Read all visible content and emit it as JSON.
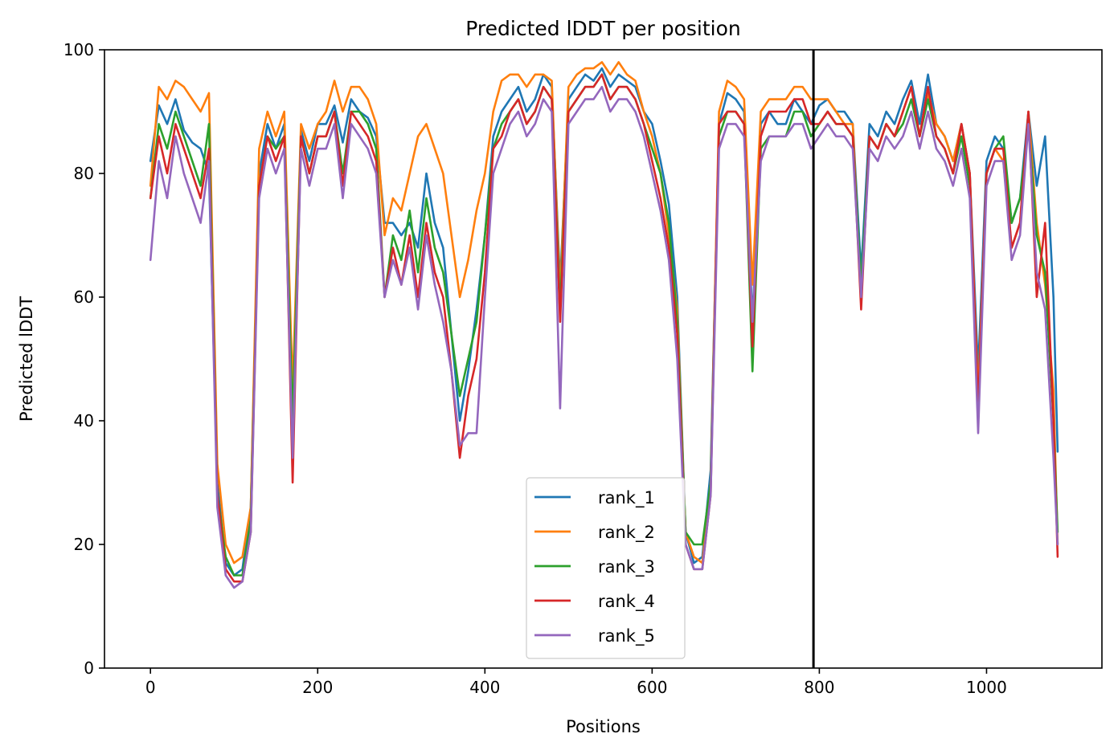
{
  "chart_data": {
    "type": "line",
    "title": "Predicted lDDT per position",
    "xlabel": "Positions",
    "ylabel": "Predicted lDDT",
    "xlim": [
      -55,
      1138
    ],
    "ylim": [
      0,
      100
    ],
    "xticks": [
      0,
      200,
      400,
      600,
      800,
      1000
    ],
    "yticks": [
      0,
      20,
      40,
      60,
      80,
      100
    ],
    "grid": false,
    "legend_position": "lower center",
    "vline": {
      "x": 793,
      "color": "#000000"
    },
    "x": [
      0,
      10,
      20,
      30,
      40,
      50,
      60,
      70,
      80,
      90,
      100,
      110,
      120,
      130,
      140,
      150,
      160,
      170,
      180,
      190,
      200,
      210,
      220,
      230,
      240,
      250,
      260,
      270,
      280,
      290,
      300,
      310,
      320,
      330,
      340,
      350,
      360,
      370,
      380,
      390,
      400,
      410,
      420,
      430,
      440,
      450,
      460,
      470,
      480,
      490,
      500,
      510,
      520,
      530,
      540,
      550,
      560,
      570,
      580,
      590,
      600,
      610,
      620,
      630,
      640,
      650,
      660,
      670,
      680,
      690,
      700,
      710,
      720,
      730,
      740,
      750,
      760,
      770,
      780,
      790,
      800,
      810,
      820,
      830,
      840,
      850,
      860,
      870,
      880,
      890,
      900,
      910,
      920,
      930,
      940,
      950,
      960,
      970,
      980,
      990,
      1000,
      1010,
      1020,
      1030,
      1040,
      1050,
      1060,
      1070,
      1080,
      1085
    ],
    "series": [
      {
        "name": "rank_1",
        "color": "#1f77b4",
        "values": [
          82,
          91,
          88,
          92,
          87,
          85,
          84,
          80,
          30,
          17,
          15,
          16,
          26,
          80,
          88,
          84,
          88,
          42,
          87,
          82,
          88,
          88,
          91,
          85,
          92,
          90,
          89,
          86,
          72,
          72,
          70,
          72,
          68,
          80,
          72,
          68,
          54,
          40,
          48,
          58,
          70,
          86,
          90,
          92,
          94,
          90,
          92,
          96,
          94,
          62,
          92,
          94,
          96,
          95,
          97,
          94,
          96,
          95,
          94,
          90,
          88,
          82,
          75,
          60,
          22,
          17,
          18,
          32,
          88,
          93,
          92,
          90,
          56,
          88,
          90,
          88,
          88,
          92,
          90,
          88,
          91,
          92,
          90,
          90,
          88,
          64,
          88,
          86,
          90,
          88,
          92,
          95,
          88,
          96,
          88,
          86,
          82,
          88,
          80,
          48,
          82,
          86,
          84,
          72,
          76,
          90,
          78,
          86,
          60,
          35
        ]
      },
      {
        "name": "rank_2",
        "color": "#ff7f0e",
        "values": [
          78,
          94,
          92,
          95,
          94,
          92,
          90,
          93,
          33,
          20,
          17,
          18,
          26,
          84,
          90,
          86,
          90,
          45,
          88,
          84,
          88,
          90,
          95,
          90,
          94,
          94,
          92,
          88,
          70,
          76,
          74,
          80,
          86,
          88,
          84,
          80,
          70,
          60,
          66,
          74,
          80,
          90,
          95,
          96,
          96,
          94,
          96,
          96,
          95,
          60,
          94,
          96,
          97,
          97,
          98,
          96,
          98,
          96,
          95,
          90,
          86,
          80,
          70,
          58,
          22,
          18,
          17,
          30,
          90,
          95,
          94,
          92,
          62,
          90,
          92,
          92,
          92,
          94,
          94,
          92,
          92,
          92,
          90,
          88,
          88,
          60,
          86,
          84,
          88,
          86,
          90,
          94,
          86,
          93,
          88,
          86,
          82,
          88,
          80,
          44,
          80,
          84,
          82,
          68,
          72,
          90,
          72,
          62,
          45,
          20
        ]
      },
      {
        "name": "rank_3",
        "color": "#2ca02c",
        "values": [
          76,
          88,
          84,
          90,
          86,
          82,
          78,
          88,
          28,
          18,
          15,
          15,
          24,
          78,
          86,
          84,
          86,
          40,
          86,
          80,
          86,
          86,
          90,
          80,
          90,
          90,
          88,
          84,
          60,
          70,
          66,
          74,
          64,
          76,
          68,
          64,
          54,
          44,
          50,
          56,
          70,
          84,
          88,
          90,
          92,
          88,
          90,
          94,
          92,
          58,
          90,
          92,
          94,
          94,
          96,
          92,
          94,
          94,
          92,
          88,
          84,
          80,
          72,
          56,
          22,
          20,
          20,
          30,
          86,
          90,
          90,
          88,
          48,
          84,
          86,
          86,
          86,
          90,
          90,
          86,
          88,
          90,
          88,
          88,
          86,
          62,
          86,
          84,
          88,
          86,
          88,
          92,
          86,
          92,
          86,
          84,
          80,
          86,
          78,
          40,
          80,
          84,
          86,
          72,
          76,
          88,
          70,
          64,
          40,
          22
        ]
      },
      {
        "name": "rank_4",
        "color": "#d62728",
        "values": [
          76,
          86,
          80,
          88,
          84,
          80,
          76,
          84,
          28,
          16,
          14,
          14,
          22,
          78,
          86,
          82,
          86,
          30,
          86,
          80,
          86,
          86,
          90,
          78,
          90,
          88,
          86,
          82,
          60,
          68,
          62,
          70,
          60,
          72,
          64,
          60,
          48,
          34,
          44,
          50,
          64,
          84,
          86,
          90,
          92,
          88,
          90,
          94,
          92,
          56,
          90,
          92,
          94,
          94,
          96,
          92,
          94,
          94,
          92,
          88,
          82,
          76,
          68,
          54,
          20,
          16,
          16,
          28,
          88,
          90,
          90,
          88,
          52,
          86,
          90,
          90,
          90,
          92,
          92,
          88,
          88,
          90,
          88,
          88,
          86,
          58,
          86,
          84,
          88,
          86,
          90,
          94,
          86,
          94,
          86,
          84,
          80,
          88,
          80,
          42,
          80,
          84,
          84,
          68,
          72,
          90,
          60,
          72,
          40,
          18
        ]
      },
      {
        "name": "rank_5",
        "color": "#9467bd",
        "values": [
          66,
          82,
          76,
          86,
          80,
          76,
          72,
          82,
          26,
          15,
          13,
          14,
          22,
          76,
          84,
          80,
          84,
          34,
          84,
          78,
          84,
          84,
          88,
          76,
          88,
          86,
          84,
          80,
          60,
          66,
          62,
          68,
          58,
          70,
          62,
          56,
          48,
          36,
          38,
          38,
          60,
          80,
          84,
          88,
          90,
          86,
          88,
          92,
          90,
          42,
          88,
          90,
          92,
          92,
          94,
          90,
          92,
          92,
          90,
          86,
          80,
          74,
          66,
          50,
          20,
          16,
          16,
          28,
          84,
          88,
          88,
          86,
          56,
          82,
          86,
          86,
          86,
          88,
          88,
          84,
          86,
          88,
          86,
          86,
          84,
          60,
          84,
          82,
          86,
          84,
          86,
          90,
          84,
          90,
          84,
          82,
          78,
          84,
          76,
          38,
          78,
          82,
          82,
          66,
          70,
          88,
          64,
          58,
          34,
          20
        ]
      }
    ]
  }
}
